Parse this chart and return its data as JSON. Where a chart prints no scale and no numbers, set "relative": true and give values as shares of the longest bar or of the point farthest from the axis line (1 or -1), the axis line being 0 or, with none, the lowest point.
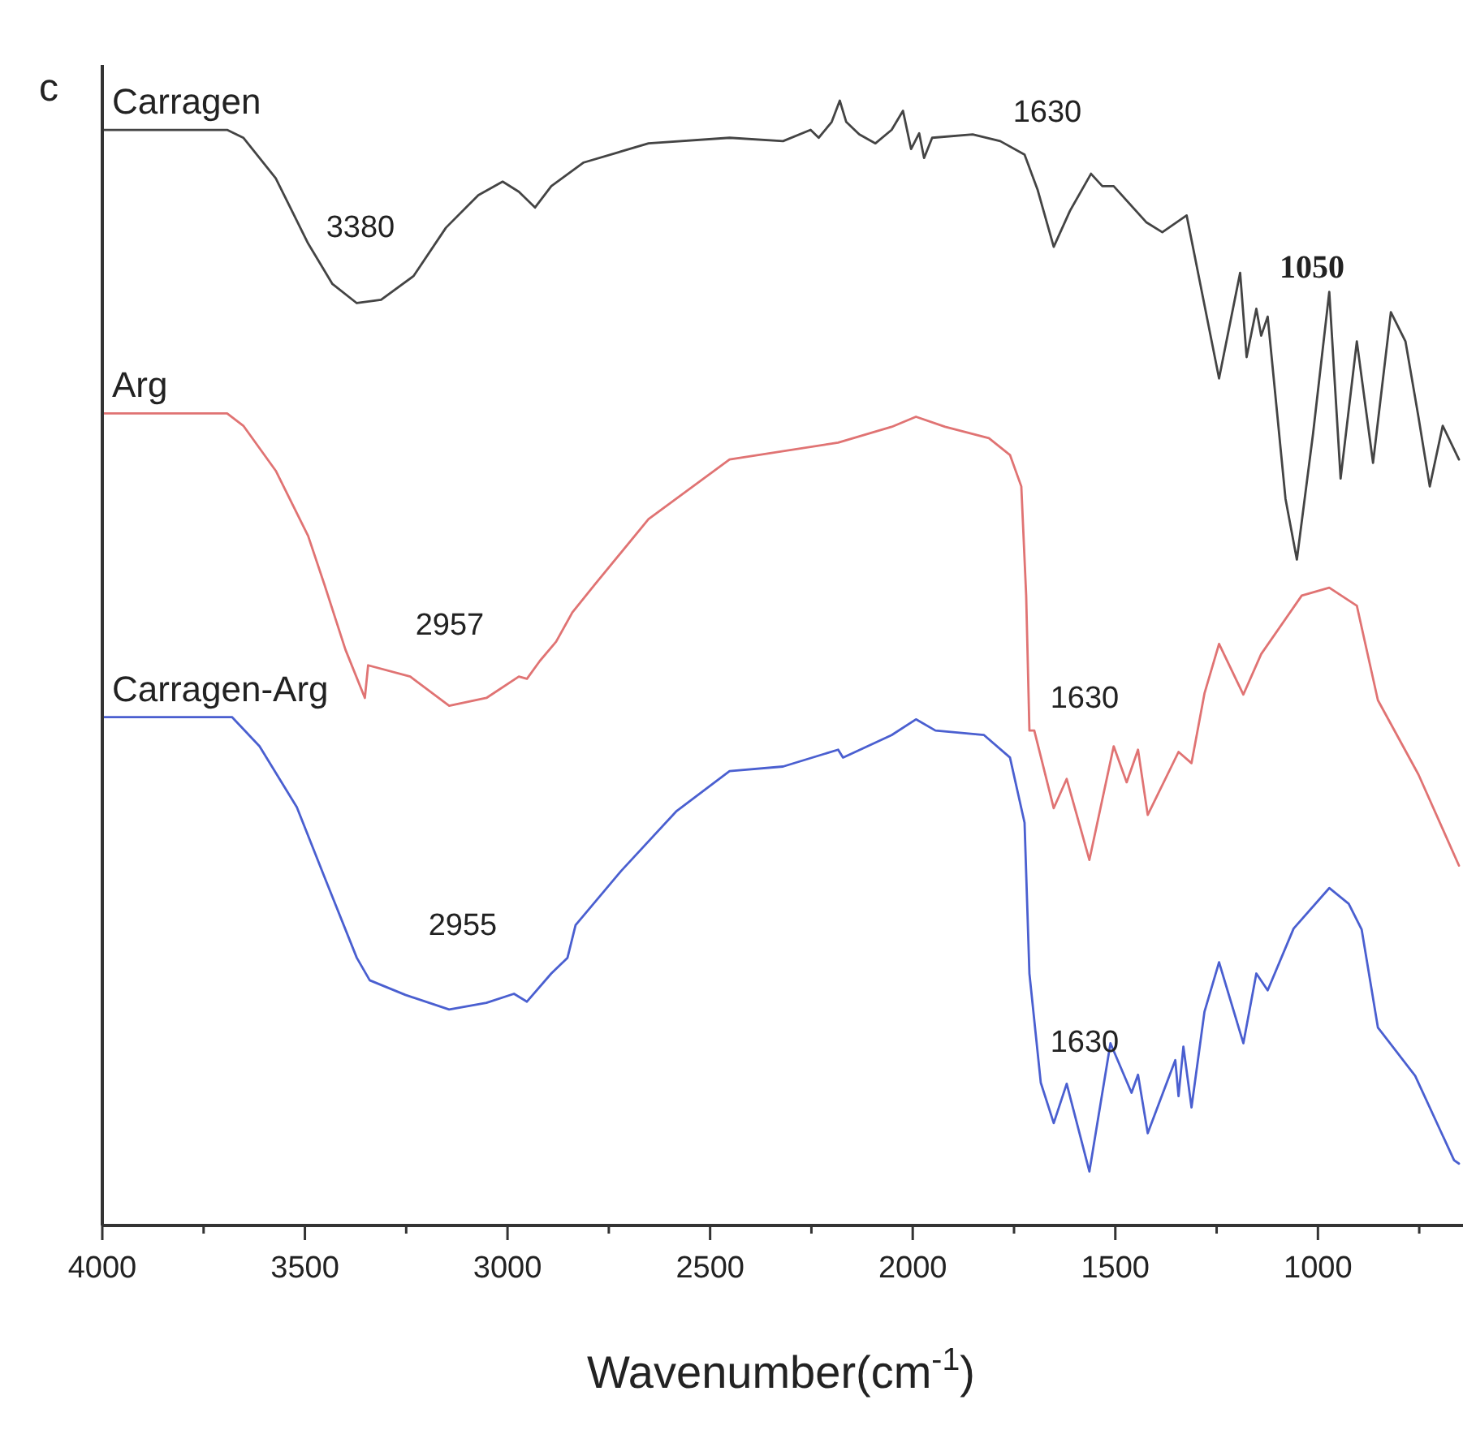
{
  "chart_data": {
    "type": "line",
    "relative": true,
    "xlabel": "Wavenumber(cm$^{-1}$)",
    "xlim": [
      4000,
      650
    ],
    "xticks": [
      4000,
      {
        "value": 3750,
        "label": null
      },
      3500,
      {
        "value": 3250,
        "label": null
      },
      3000,
      {
        "value": 2750,
        "label": null
      },
      2500,
      {
        "value": 2250,
        "label": null
      },
      2000,
      {
        "value": 1750,
        "label": null
      },
      1500,
      {
        "value": 1250,
        "label": null
      },
      1000,
      {
        "value": 750,
        "label": null
      }
    ],
    "tick_labels": "x",
    "grid": false,
    "marker": "none",
    "line_style": "solid",
    "annotations": [
      "c",
      "3380",
      "1630",
      "1050",
      "2957",
      "1630",
      "2955",
      "1630"
    ],
    "series": [
      {
        "name": "Carragen",
        "color": "#444444",
        "x": [
          4000,
          3692,
          3652,
          3572,
          3492,
          3432,
          3372,
          3312,
          3232,
          3152,
          3072,
          3012,
          2972,
          2932,
          2892,
          2812,
          2652,
          2452,
          2320,
          2252,
          2232,
          2200,
          2180,
          2164,
          2132,
          2092,
          2052,
          2024,
          2004,
          1984,
          1972,
          1952,
          1852,
          1784,
          1724,
          1692,
          1652,
          1612,
          1560,
          1532,
          1504,
          1424,
          1384,
          1324,
          1292,
          1244,
          1192,
          1176,
          1152,
          1140,
          1124,
          1080,
          1052,
          1012,
          972,
          944,
          904,
          864,
          820,
          784,
          752,
          724,
          692,
          652
        ],
        "values": [
          0.974,
          0.974,
          0.967,
          0.931,
          0.873,
          0.837,
          0.82,
          0.823,
          0.844,
          0.887,
          0.916,
          0.928,
          0.919,
          0.905,
          0.924,
          0.945,
          0.962,
          0.967,
          0.964,
          0.974,
          0.967,
          0.981,
          1.0,
          0.981,
          0.97,
          0.962,
          0.974,
          0.991,
          0.957,
          0.971,
          0.949,
          0.967,
          0.97,
          0.964,
          0.952,
          0.921,
          0.87,
          0.902,
          0.935,
          0.924,
          0.924,
          0.892,
          0.883,
          0.898,
          0.84,
          0.753,
          0.847,
          0.772,
          0.815,
          0.791,
          0.808,
          0.646,
          0.592,
          0.704,
          0.83,
          0.664,
          0.786,
          0.678,
          0.812,
          0.786,
          0.719,
          0.657,
          0.711,
          0.681
        ]
      },
      {
        "name": "Arg",
        "color": "#e07373",
        "x": [
          4000,
          3692,
          3652,
          3572,
          3492,
          3452,
          3400,
          3352,
          3344,
          3240,
          3144,
          3052,
          2972,
          2952,
          2920,
          2880,
          2840,
          2784,
          2652,
          2452,
          2184,
          2052,
          1992,
          1920,
          1812,
          1760,
          1732,
          1720,
          1712,
          1700,
          1652,
          1620,
          1564,
          1504,
          1472,
          1444,
          1420,
          1344,
          1312,
          1280,
          1244,
          1184,
          1140,
          1040,
          972,
          904,
          852,
          752,
          652
        ],
        "values": [
          0.722,
          0.722,
          0.711,
          0.671,
          0.613,
          0.57,
          0.512,
          0.469,
          0.498,
          0.488,
          0.462,
          0.469,
          0.488,
          0.486,
          0.502,
          0.519,
          0.545,
          0.57,
          0.628,
          0.681,
          0.696,
          0.71,
          0.719,
          0.71,
          0.7,
          0.685,
          0.657,
          0.56,
          0.44,
          0.44,
          0.371,
          0.397,
          0.325,
          0.426,
          0.394,
          0.423,
          0.365,
          0.421,
          0.411,
          0.473,
          0.517,
          0.472,
          0.508,
          0.56,
          0.567,
          0.551,
          0.467,
          0.401,
          0.32
        ]
      },
      {
        "name": "Carragen-Arg",
        "color": "#4a5fd0",
        "x": [
          4000,
          3680,
          3612,
          3520,
          3452,
          3372,
          3340,
          3252,
          3144,
          3052,
          2984,
          2952,
          2892,
          2852,
          2832,
          2720,
          2584,
          2452,
          2320,
          2184,
          2172,
          2052,
          1992,
          1944,
          1824,
          1760,
          1724,
          1712,
          1684,
          1652,
          1620,
          1564,
          1512,
          1460,
          1444,
          1420,
          1352,
          1344,
          1332,
          1312,
          1280,
          1244,
          1184,
          1152,
          1124,
          1060,
          972,
          924,
          892,
          852,
          760,
          664,
          652
        ],
        "values": [
          0.452,
          0.452,
          0.426,
          0.372,
          0.31,
          0.238,
          0.218,
          0.205,
          0.192,
          0.198,
          0.206,
          0.199,
          0.224,
          0.238,
          0.267,
          0.315,
          0.368,
          0.404,
          0.408,
          0.423,
          0.416,
          0.436,
          0.45,
          0.44,
          0.436,
          0.416,
          0.358,
          0.224,
          0.127,
          0.091,
          0.126,
          0.048,
          0.162,
          0.118,
          0.134,
          0.082,
          0.147,
          0.115,
          0.159,
          0.105,
          0.19,
          0.234,
          0.162,
          0.224,
          0.209,
          0.264,
          0.3,
          0.286,
          0.263,
          0.176,
          0.133,
          0.058,
          0.055
        ]
      }
    ]
  }
}
